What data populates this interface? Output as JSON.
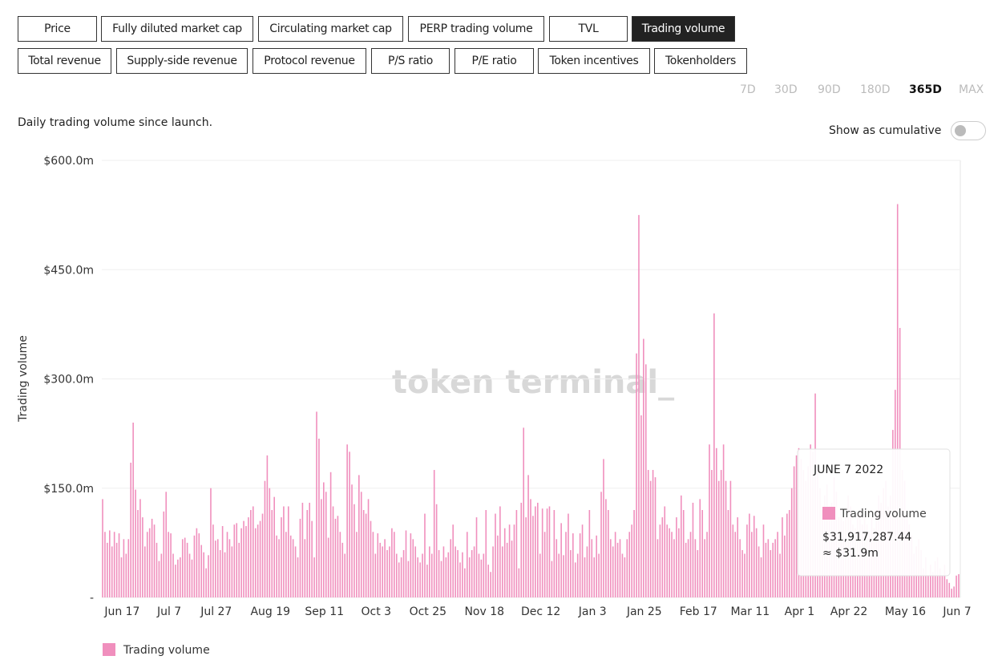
{
  "tabs": {
    "row1": [
      "Price",
      "Fully diluted market cap",
      "Circulating market cap",
      "PERP trading volume",
      "TVL",
      "Trading volume"
    ],
    "row2": [
      "Total revenue",
      "Supply-side revenue",
      "Protocol revenue",
      "P/S ratio",
      "P/E ratio",
      "Token incentives",
      "Tokenholders"
    ]
  },
  "periods": [
    "7D",
    "30D",
    "90D",
    "180D",
    "365D",
    "MAX"
  ],
  "description": "Daily trading volume since launch.",
  "cumulative_toggle": "Show as cumulative",
  "watermark": "token terminal_",
  "tooltip": {
    "title": "JUNE 7 2022",
    "value_label": "$31,917,287.44",
    "approx_label": "≈ $31.9m"
  },
  "chart_data": {
    "type": "bar",
    "y_label": "Trading volume",
    "ylim": [
      0,
      600000000
    ],
    "yticks": [
      {
        "value": 0,
        "label": "-"
      },
      {
        "value": 150000000,
        "label": "$150.0m"
      },
      {
        "value": 300000000,
        "label": "$300.0m"
      },
      {
        "value": 450000000,
        "label": "$450.0m"
      },
      {
        "value": 600000000,
        "label": "$600.0m"
      }
    ],
    "grid": true,
    "categories": [
      null,
      null,
      null,
      null,
      null,
      null,
      null,
      null,
      null,
      "Jun 17",
      null,
      null,
      null,
      null,
      null,
      null,
      null,
      null,
      null,
      null,
      null,
      null,
      null,
      null,
      null,
      null,
      null,
      null,
      null,
      "Jul 7",
      null,
      null,
      null,
      null,
      null,
      null,
      null,
      null,
      null,
      null,
      null,
      null,
      null,
      null,
      null,
      null,
      null,
      null,
      null,
      "Jul 27",
      null,
      null,
      null,
      null,
      null,
      null,
      null,
      null,
      null,
      null,
      null,
      null,
      null,
      null,
      null,
      null,
      null,
      null,
      null,
      null,
      null,
      null,
      "Aug 19",
      null,
      null,
      null,
      null,
      null,
      null,
      null,
      null,
      null,
      null,
      null,
      null,
      null,
      null,
      null,
      null,
      null,
      null,
      null,
      null,
      null,
      null,
      "Sep 11",
      null,
      null,
      null,
      null,
      null,
      null,
      null,
      null,
      null,
      null,
      null,
      null,
      null,
      null,
      null,
      null,
      null,
      null,
      null,
      null,
      null,
      "Oct 3",
      null,
      null,
      null,
      null,
      null,
      null,
      null,
      null,
      null,
      null,
      null,
      null,
      null,
      null,
      null,
      null,
      null,
      null,
      null,
      null,
      null,
      "Oct 25",
      null,
      null,
      null,
      null,
      null,
      null,
      null,
      null,
      null,
      null,
      null,
      null,
      null,
      null,
      null,
      null,
      null,
      null,
      null,
      null,
      null,
      null,
      null,
      "Nov 18",
      null,
      null,
      null,
      null,
      null,
      null,
      null,
      null,
      null,
      null,
      null,
      null,
      null,
      null,
      null,
      null,
      null,
      null,
      null,
      null,
      null,
      null,
      null,
      "Dec 12",
      null,
      null,
      null,
      null,
      null,
      null,
      null,
      null,
      null,
      null,
      null,
      null,
      null,
      null,
      null,
      null,
      null,
      null,
      null,
      null,
      null,
      "Jan 3",
      null,
      null,
      null,
      null,
      null,
      null,
      null,
      null,
      null,
      null,
      null,
      null,
      null,
      null,
      null,
      null,
      null,
      null,
      null,
      null,
      null,
      "Jan 25",
      null,
      null,
      null,
      null,
      null,
      null,
      null,
      null,
      null,
      null,
      null,
      null,
      null,
      null,
      null,
      null,
      null,
      null,
      null,
      null,
      null,
      null,
      "Feb 17",
      null,
      null,
      null,
      null,
      null,
      null,
      null,
      null,
      null,
      null,
      null,
      null,
      null,
      null,
      null,
      null,
      null,
      null,
      null,
      null,
      null,
      "Mar 11",
      null,
      null,
      null,
      null,
      null,
      null,
      null,
      null,
      null,
      null,
      null,
      null,
      null,
      null,
      null,
      null,
      null,
      null,
      null,
      null,
      "Apr 1",
      null,
      null,
      null,
      null,
      null,
      null,
      null,
      null,
      null,
      null,
      null,
      null,
      null,
      null,
      null,
      null,
      null,
      null,
      null,
      null,
      "Apr 22",
      null,
      null,
      null,
      null,
      null,
      null,
      null,
      null,
      null,
      null,
      null,
      null,
      null,
      null,
      null,
      null,
      null,
      null,
      null,
      null,
      null,
      null,
      null,
      "May 16",
      null,
      null,
      null,
      null,
      null,
      null,
      null,
      null,
      null,
      null,
      null,
      null,
      null,
      null,
      null,
      null,
      null,
      null,
      null,
      null,
      null,
      "Jun 7"
    ],
    "series": [
      {
        "name": "Trading volume",
        "color": "#f08fbd",
        "values": [
          135000000.0,
          90000000.0,
          75000000.0,
          92000000.0,
          70000000.0,
          90000000.0,
          75000000.0,
          88000000.0,
          55000000.0,
          80000000.0,
          60000000.0,
          80000000.0,
          185000000.0,
          240000000.0,
          148000000.0,
          120000000.0,
          135000000.0,
          110000000.0,
          70000000.0,
          90000000.0,
          95000000.0,
          108000000.0,
          100000000.0,
          75000000.0,
          50000000.0,
          60000000.0,
          118000000.0,
          145000000.0,
          90000000.0,
          88000000.0,
          60000000.0,
          45000000.0,
          52000000.0,
          55000000.0,
          80000000.0,
          82000000.0,
          75000000.0,
          60000000.0,
          52000000.0,
          85000000.0,
          95000000.0,
          88000000.0,
          72000000.0,
          62000000.0,
          40000000.0,
          58000000.0,
          150000000.0,
          100000000.0,
          78000000.0,
          80000000.0,
          65000000.0,
          98000000.0,
          62000000.0,
          90000000.0,
          80000000.0,
          70000000.0,
          100000000.0,
          102000000.0,
          75000000.0,
          95000000.0,
          105000000.0,
          98000000.0,
          110000000.0,
          120000000.0,
          125000000.0,
          95000000.0,
          100000000.0,
          105000000.0,
          115000000.0,
          160000000.0,
          195000000.0,
          150000000.0,
          120000000.0,
          138000000.0,
          85000000.0,
          80000000.0,
          110000000.0,
          125000000.0,
          90000000.0,
          125000000.0,
          85000000.0,
          80000000.0,
          70000000.0,
          55000000.0,
          108000000.0,
          130000000.0,
          80000000.0,
          120000000.0,
          130000000.0,
          105000000.0,
          55000000.0,
          255000000.0,
          218000000.0,
          135000000.0,
          158000000.0,
          145000000.0,
          82000000.0,
          172000000.0,
          125000000.0,
          108000000.0,
          112000000.0,
          90000000.0,
          75000000.0,
          60000000.0,
          210000000.0,
          200000000.0,
          155000000.0,
          128000000.0,
          90000000.0,
          168000000.0,
          145000000.0,
          120000000.0,
          115000000.0,
          135000000.0,
          105000000.0,
          90000000.0,
          60000000.0,
          88000000.0,
          75000000.0,
          70000000.0,
          80000000.0,
          65000000.0,
          70000000.0,
          95000000.0,
          90000000.0,
          60000000.0,
          48000000.0,
          55000000.0,
          65000000.0,
          92000000.0,
          50000000.0,
          88000000.0,
          80000000.0,
          70000000.0,
          55000000.0,
          48000000.0,
          60000000.0,
          115000000.0,
          45000000.0,
          70000000.0,
          60000000.0,
          175000000.0,
          128000000.0,
          65000000.0,
          50000000.0,
          70000000.0,
          55000000.0,
          62000000.0,
          80000000.0,
          100000000.0,
          70000000.0,
          65000000.0,
          48000000.0,
          62000000.0,
          40000000.0,
          90000000.0,
          55000000.0,
          65000000.0,
          70000000.0,
          110000000.0,
          60000000.0,
          52000000.0,
          60000000.0,
          120000000.0,
          45000000.0,
          35000000.0,
          70000000.0,
          115000000.0,
          85000000.0,
          125000000.0,
          70000000.0,
          95000000.0,
          75000000.0,
          100000000.0,
          78000000.0,
          100000000.0,
          120000000.0,
          40000000.0,
          130000000.0,
          233000000.0,
          110000000.0,
          168000000.0,
          135000000.0,
          112000000.0,
          125000000.0,
          130000000.0,
          60000000.0,
          122000000.0,
          90000000.0,
          122000000.0,
          125000000.0,
          50000000.0,
          120000000.0,
          80000000.0,
          60000000.0,
          102000000.0,
          58000000.0,
          90000000.0,
          115000000.0,
          65000000.0,
          88000000.0,
          48000000.0,
          60000000.0,
          88000000.0,
          100000000.0,
          55000000.0,
          70000000.0,
          120000000.0,
          80000000.0,
          55000000.0,
          85000000.0,
          60000000.0,
          145000000.0,
          190000000.0,
          135000000.0,
          120000000.0,
          80000000.0,
          70000000.0,
          90000000.0,
          75000000.0,
          80000000.0,
          60000000.0,
          55000000.0,
          80000000.0,
          90000000.0,
          100000000.0,
          120000000.0,
          335000000.0,
          525000000.0,
          250000000.0,
          355000000.0,
          320000000.0,
          175000000.0,
          160000000.0,
          175000000.0,
          165000000.0,
          80000000.0,
          100000000.0,
          110000000.0,
          125000000.0,
          100000000.0,
          95000000.0,
          90000000.0,
          80000000.0,
          110000000.0,
          95000000.0,
          140000000.0,
          120000000.0,
          75000000.0,
          80000000.0,
          90000000.0,
          130000000.0,
          80000000.0,
          65000000.0,
          135000000.0,
          120000000.0,
          80000000.0,
          90000000.0,
          210000000.0,
          175000000.0,
          390000000.0,
          205000000.0,
          160000000.0,
          175000000.0,
          210000000.0,
          160000000.0,
          120000000.0,
          160000000.0,
          100000000.0,
          90000000.0,
          110000000.0,
          80000000.0,
          65000000.0,
          60000000.0,
          100000000.0,
          115000000.0,
          90000000.0,
          112000000.0,
          95000000.0,
          70000000.0,
          55000000.0,
          100000000.0,
          75000000.0,
          80000000.0,
          65000000.0,
          75000000.0,
          80000000.0,
          90000000.0,
          60000000.0,
          110000000.0,
          85000000.0,
          115000000.0,
          120000000.0,
          150000000.0,
          180000000.0,
          195000000.0,
          205000000.0,
          190000000.0,
          175000000.0,
          160000000.0,
          180000000.0,
          210000000.0,
          200000000.0,
          280000000.0,
          175000000.0,
          150000000.0,
          120000000.0,
          140000000.0,
          155000000.0,
          125000000.0,
          130000000.0,
          165000000.0,
          145000000.0,
          110000000.0,
          120000000.0,
          105000000.0,
          110000000.0,
          140000000.0,
          125000000.0,
          100000000.0,
          95000000.0,
          115000000.0,
          120000000.0,
          100000000.0,
          110000000.0,
          100000000.0,
          90000000.0,
          110000000.0,
          95000000.0,
          120000000.0,
          140000000.0,
          130000000.0,
          150000000.0,
          160000000.0,
          125000000.0,
          140000000.0,
          230000000.0,
          285000000.0,
          540000000.0,
          370000000.0,
          175000000.0,
          160000000.0,
          120000000.0,
          100000000.0,
          85000000.0,
          60000000.0,
          70000000.0,
          80000000.0,
          65000000.0,
          40000000.0,
          55000000.0,
          30000000.0,
          45000000.0,
          35000000.0,
          50000000.0,
          55000000.0,
          40000000.0,
          30000000.0,
          45000000.0,
          25000000.0,
          20000000.0,
          12000000.0,
          15000000.0,
          30000000.0,
          31917287.44
        ]
      }
    ]
  }
}
